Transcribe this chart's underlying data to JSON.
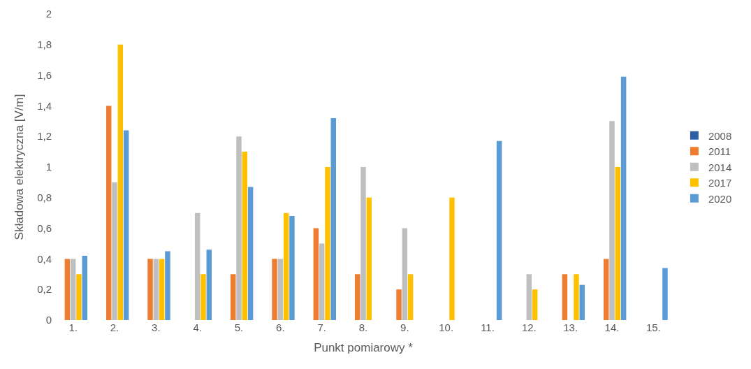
{
  "chart_data": {
    "type": "bar",
    "xlabel": "Punkt pomiarowy *",
    "ylabel": "Składowa elektryczna [V/m]",
    "categories": [
      "1.",
      "2.",
      "3.",
      "4.",
      "5.",
      "6.",
      "7.",
      "8.",
      "9.",
      "10.",
      "11.",
      "12.",
      "13.",
      "14.",
      "15."
    ],
    "series": [
      {
        "name": "2008",
        "color": "#2e5fa3",
        "values": [
          null,
          null,
          null,
          null,
          null,
          null,
          null,
          null,
          null,
          null,
          null,
          null,
          null,
          null,
          null
        ]
      },
      {
        "name": "2011",
        "color": "#ed7d31",
        "values": [
          0.4,
          1.4,
          0.4,
          null,
          0.3,
          0.4,
          0.6,
          0.3,
          0.2,
          null,
          null,
          null,
          0.3,
          0.4,
          null
        ]
      },
      {
        "name": "2014",
        "color": "#bfbfbf",
        "values": [
          0.4,
          0.9,
          0.4,
          0.7,
          1.2,
          0.4,
          0.5,
          1.0,
          0.6,
          null,
          null,
          0.3,
          null,
          1.3,
          null
        ]
      },
      {
        "name": "2017",
        "color": "#ffc000",
        "values": [
          0.3,
          1.8,
          0.4,
          0.3,
          1.1,
          0.7,
          1.0,
          0.8,
          0.3,
          0.8,
          null,
          0.2,
          0.3,
          1.0,
          null
        ]
      },
      {
        "name": "2020",
        "color": "#5b9bd5",
        "values": [
          0.42,
          1.24,
          0.45,
          0.46,
          0.87,
          0.68,
          1.32,
          null,
          null,
          null,
          1.17,
          null,
          0.23,
          1.59,
          0.34
        ]
      }
    ],
    "ylim": [
      0,
      2
    ],
    "yticks": [
      {
        "value": 0,
        "label": "0"
      },
      {
        "value": 0.2,
        "label": "0,2"
      },
      {
        "value": 0.4,
        "label": "0,4"
      },
      {
        "value": 0.6,
        "label": "0,6"
      },
      {
        "value": 0.8,
        "label": "0,8"
      },
      {
        "value": 1,
        "label": "1"
      },
      {
        "value": 1.2,
        "label": "1,2"
      },
      {
        "value": 1.4,
        "label": "1,4"
      },
      {
        "value": 1.6,
        "label": "1,6"
      },
      {
        "value": 1.8,
        "label": "1,8"
      },
      {
        "value": 2,
        "label": "2"
      }
    ],
    "legend": "right",
    "grid": false
  }
}
